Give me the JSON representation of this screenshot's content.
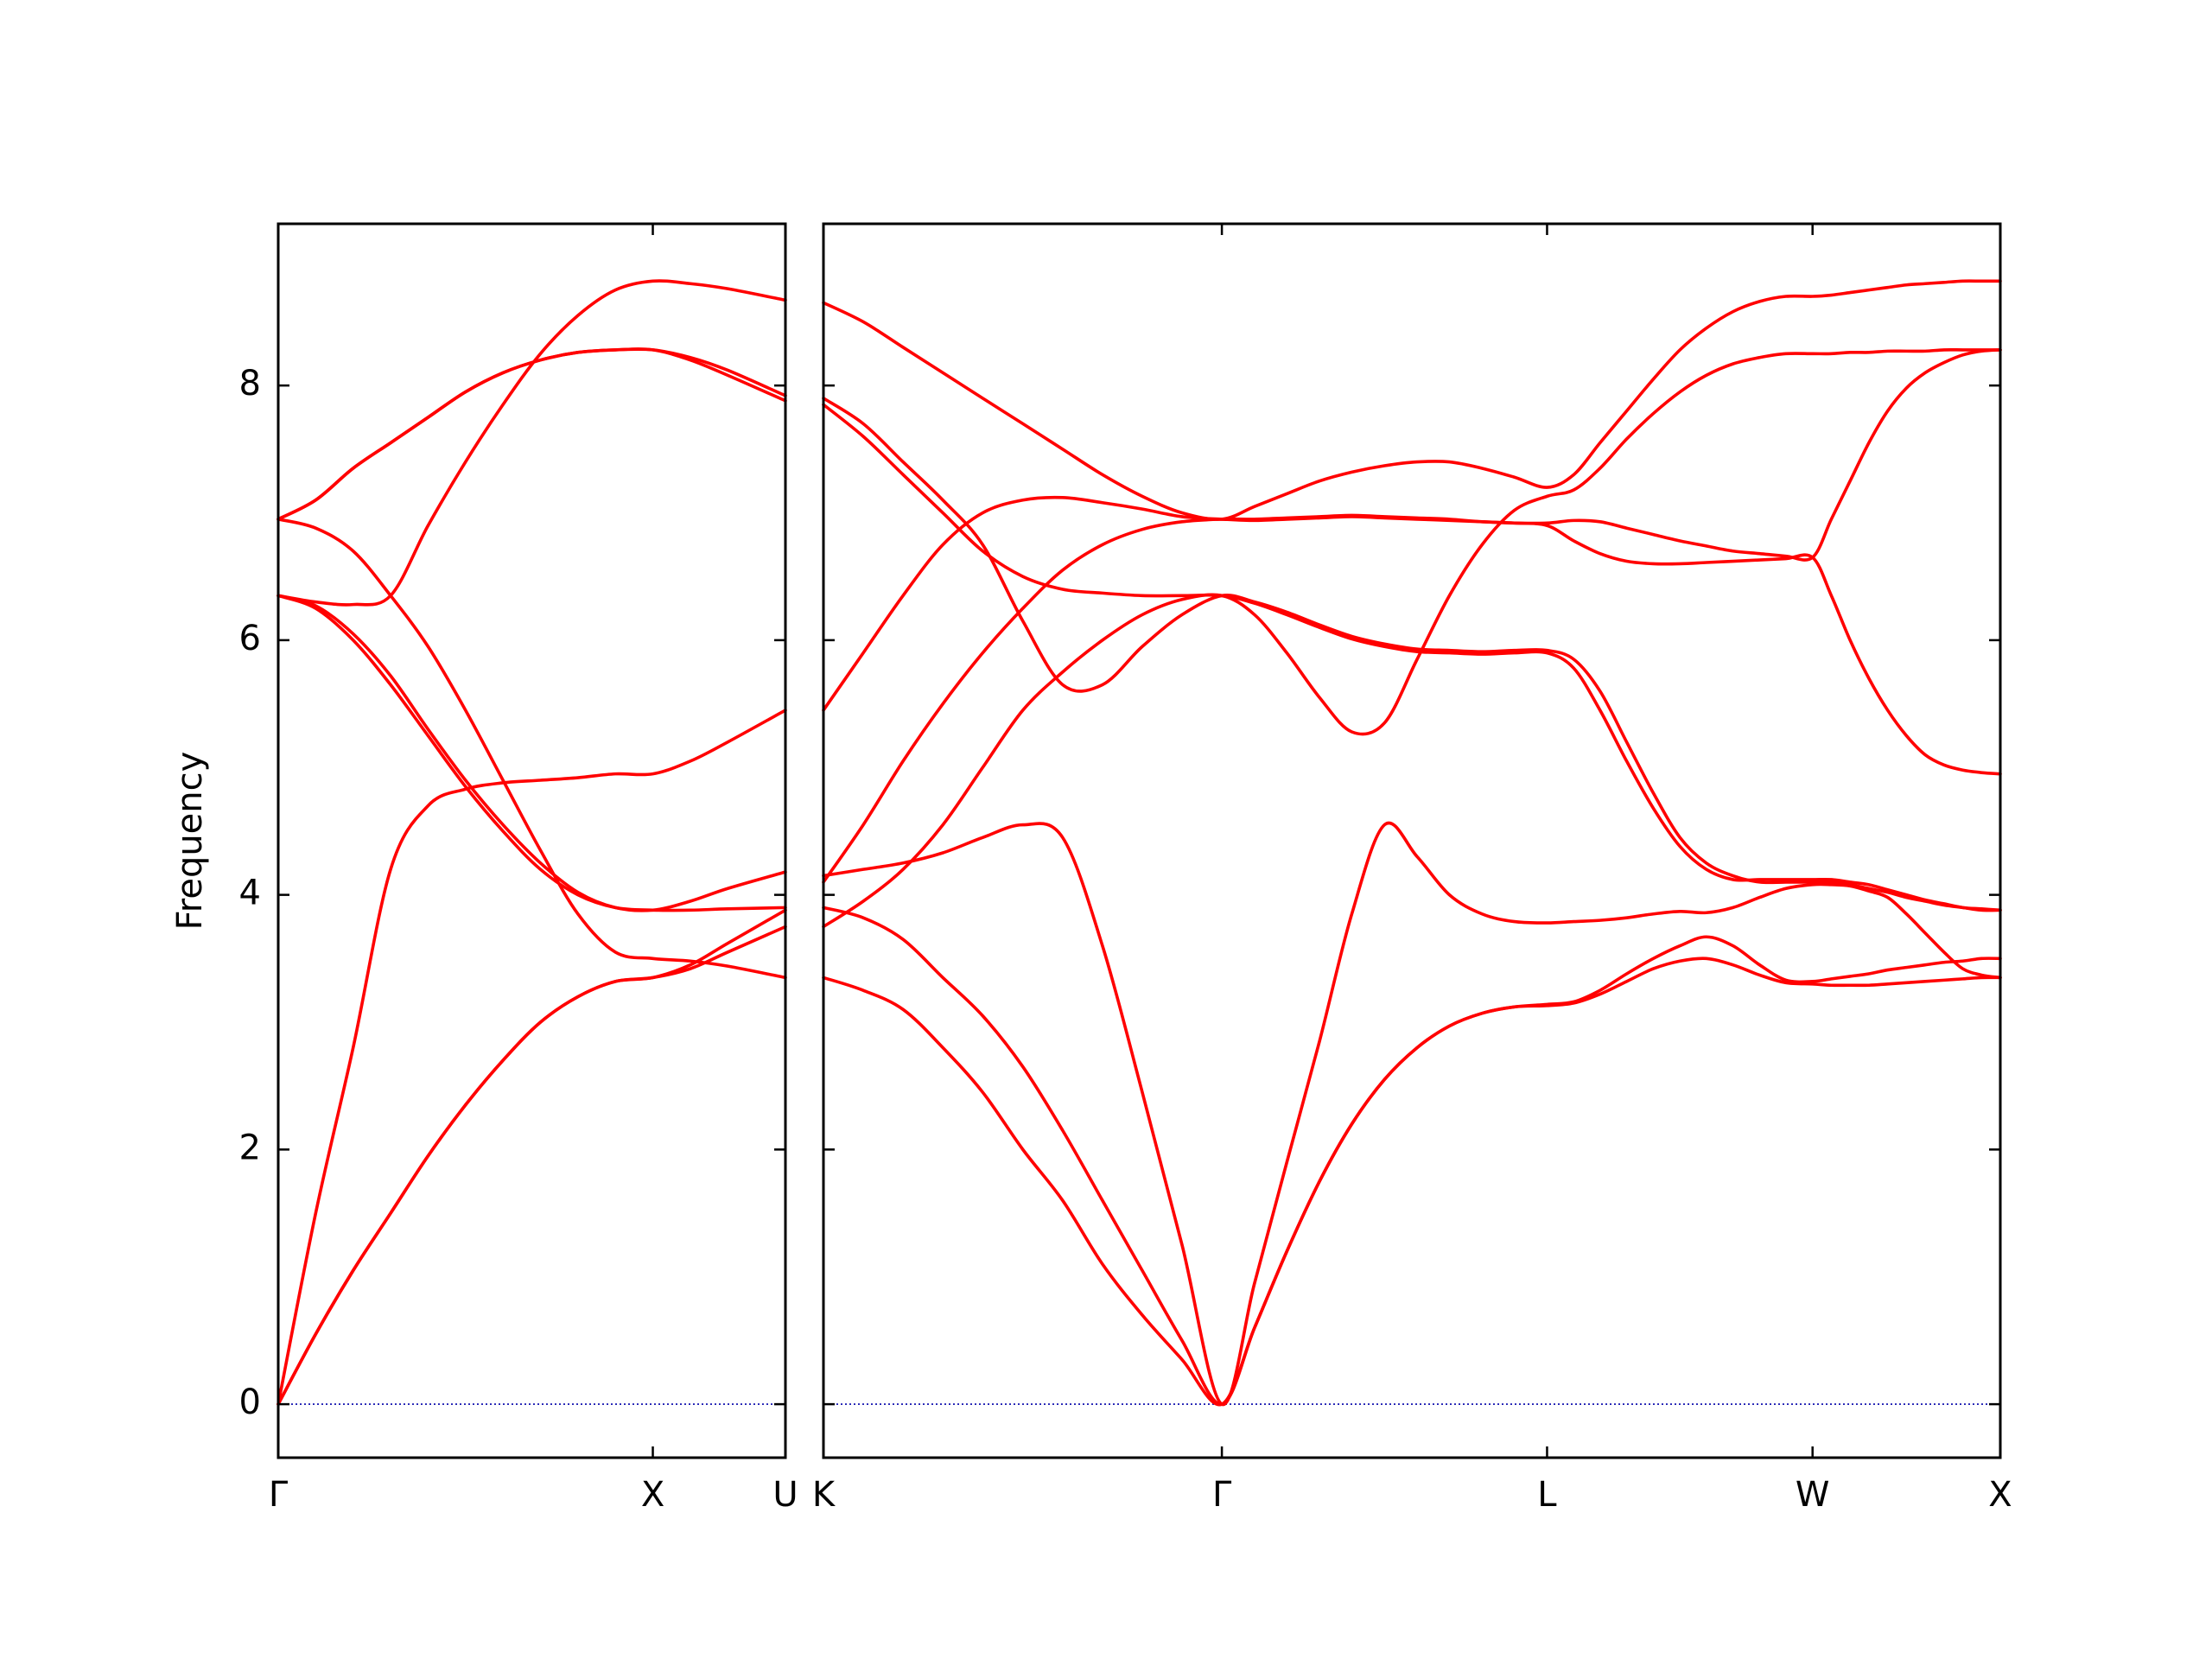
{
  "chart_data": [
    {
      "type": "line",
      "ylabel": "Frequency",
      "x": [
        0,
        0.1,
        0.2,
        0.3,
        0.4,
        0.5,
        0.6,
        0.7,
        0.8,
        0.9,
        1.0,
        1.1,
        1.2,
        1.354
      ],
      "xlim": [
        0,
        1.354
      ],
      "xticks": [
        {
          "value": 0,
          "label": "Γ"
        },
        {
          "value": 1,
          "label": "X"
        },
        {
          "value": 1.354,
          "label": "U"
        }
      ],
      "ylim": [
        -0.42,
        9.27
      ],
      "yticks": [
        0,
        2,
        4,
        6,
        8
      ],
      "color": "#ff0000",
      "hline": 0,
      "hline_color": "#0000aa",
      "series": [
        {
          "values": [
            0,
            0.55,
            1.05,
            1.5,
            1.95,
            2.35,
            2.7,
            3.0,
            3.2,
            3.32,
            3.35,
            3.42,
            3.55,
            3.75
          ]
        },
        {
          "values": [
            0,
            0.55,
            1.05,
            1.5,
            1.95,
            2.35,
            2.7,
            3.0,
            3.2,
            3.32,
            3.35,
            3.45,
            3.62,
            3.88
          ]
        },
        {
          "values": [
            6.95,
            6.88,
            6.7,
            6.35,
            5.95,
            5.45,
            4.9,
            4.35,
            3.85,
            3.55,
            3.5,
            3.48,
            3.44,
            3.35
          ]
        },
        {
          "values": [
            6.35,
            6.25,
            6.0,
            5.65,
            5.25,
            4.85,
            4.5,
            4.2,
            4.0,
            3.9,
            3.88,
            3.88,
            3.89,
            3.9
          ]
        },
        {
          "values": [
            6.35,
            6.27,
            6.05,
            5.72,
            5.3,
            4.9,
            4.55,
            4.25,
            4.02,
            3.9,
            3.88,
            3.95,
            4.05,
            4.18
          ]
        },
        {
          "values": [
            0,
            1.5,
            2.8,
            4.2,
            4.7,
            4.83,
            4.88,
            4.9,
            4.92,
            4.95,
            4.95,
            5.05,
            5.2,
            5.45
          ]
        },
        {
          "values": [
            6.35,
            6.3,
            6.28,
            6.35,
            6.9,
            7.4,
            7.85,
            8.25,
            8.55,
            8.75,
            8.82,
            8.8,
            8.76,
            8.67
          ]
        },
        {
          "values": [
            6.95,
            7.1,
            7.35,
            7.55,
            7.75,
            7.95,
            8.1,
            8.2,
            8.26,
            8.28,
            8.28,
            8.2,
            8.08,
            7.88
          ]
        },
        {
          "values": [
            6.95,
            7.1,
            7.35,
            7.55,
            7.75,
            7.95,
            8.1,
            8.2,
            8.26,
            8.28,
            8.28,
            8.22,
            8.12,
            7.92
          ]
        }
      ]
    },
    {
      "type": "line",
      "x": [
        1.354,
        1.46,
        1.566,
        1.672,
        1.778,
        1.885,
        1.991,
        2.097,
        2.203,
        2.309,
        2.415,
        2.502,
        2.588,
        2.675,
        2.761,
        2.848,
        2.935,
        3.021,
        3.108,
        3.194,
        3.281,
        3.352,
        3.422,
        3.493,
        3.564,
        3.635,
        3.705,
        3.776,
        3.847,
        3.917,
        3.988,
        4.038,
        4.088,
        4.138,
        4.188,
        4.238,
        4.288,
        4.338,
        4.388,
        4.438,
        4.488
      ],
      "xlim": [
        1.354,
        4.488
      ],
      "xticks": [
        {
          "value": 1.354,
          "label": "K"
        },
        {
          "value": 2.415,
          "label": "Γ"
        },
        {
          "value": 3.281,
          "label": "L"
        },
        {
          "value": 3.988,
          "label": "W"
        },
        {
          "value": 4.488,
          "label": "X"
        }
      ],
      "ylim": [
        -0.42,
        9.27
      ],
      "yticks": [
        0,
        2,
        4,
        6,
        8
      ],
      "show_ytick_labels": false,
      "color": "#ff0000",
      "hline": 0,
      "hline_color": "#0000aa",
      "series": [
        {
          "values": [
            3.35,
            3.25,
            3.1,
            2.8,
            2.45,
            2.0,
            1.6,
            1.1,
            0.7,
            0.35,
            0,
            0.6,
            1.2,
            1.75,
            2.2,
            2.55,
            2.8,
            2.97,
            3.07,
            3.12,
            3.13,
            3.15,
            3.22,
            3.32,
            3.42,
            3.48,
            3.5,
            3.45,
            3.37,
            3.31,
            3.3,
            3.29,
            3.29,
            3.29,
            3.3,
            3.31,
            3.32,
            3.33,
            3.34,
            3.35,
            3.35
          ]
        },
        {
          "values": [
            3.9,
            3.82,
            3.65,
            3.35,
            3.05,
            2.65,
            2.15,
            1.6,
            1.05,
            0.5,
            0,
            0.6,
            1.2,
            1.75,
            2.2,
            2.55,
            2.8,
            2.97,
            3.07,
            3.12,
            3.14,
            3.16,
            3.25,
            3.38,
            3.5,
            3.6,
            3.67,
            3.6,
            3.45,
            3.33,
            3.32,
            3.34,
            3.36,
            3.38,
            3.41,
            3.43,
            3.45,
            3.47,
            3.48,
            3.5,
            3.5
          ]
        },
        {
          "values": [
            4.15,
            4.2,
            4.25,
            4.33,
            4.45,
            4.55,
            4.45,
            3.6,
            2.45,
            1.25,
            0,
            0.95,
            1.9,
            2.85,
            3.85,
            4.55,
            4.3,
            4.0,
            3.85,
            3.79,
            3.78,
            3.79,
            3.8,
            3.82,
            3.85,
            3.87,
            3.86,
            3.9,
            3.98,
            4.05,
            4.08,
            4.08,
            4.07,
            4.03,
            3.98,
            3.85,
            3.7,
            3.55,
            3.42,
            3.37,
            3.35
          ]
        },
        {
          "values": [
            3.75,
            3.95,
            4.2,
            4.55,
            5.0,
            5.45,
            5.75,
            6.0,
            6.2,
            6.32,
            6.35,
            6.2,
            5.9,
            5.55,
            5.28,
            5.35,
            5.85,
            6.35,
            6.75,
            7.02,
            7.13,
            7.18,
            7.35,
            7.58,
            7.78,
            7.95,
            8.08,
            8.17,
            8.22,
            8.25,
            8.25,
            8.25,
            8.26,
            8.26,
            8.27,
            8.27,
            8.27,
            8.28,
            8.28,
            8.28,
            8.28
          ]
        },
        {
          "values": [
            7.9,
            7.7,
            7.4,
            7.1,
            6.75,
            6.15,
            5.65,
            5.65,
            5.95,
            6.2,
            6.35,
            6.3,
            6.22,
            6.12,
            6.03,
            5.97,
            5.93,
            5.92,
            5.91,
            5.92,
            5.92,
            5.85,
            5.6,
            5.2,
            4.8,
            4.45,
            4.25,
            4.15,
            4.1,
            4.1,
            4.1,
            4.1,
            4.08,
            4.05,
            4.02,
            3.98,
            3.95,
            3.92,
            3.9,
            3.88,
            3.88
          ]
        },
        {
          "values": [
            7.85,
            7.6,
            7.3,
            7.0,
            6.7,
            6.5,
            6.4,
            6.37,
            6.35,
            6.35,
            6.35,
            6.29,
            6.2,
            6.1,
            6.01,
            5.95,
            5.91,
            5.9,
            5.89,
            5.9,
            5.9,
            5.78,
            5.45,
            5.05,
            4.68,
            4.38,
            4.2,
            4.12,
            4.12,
            4.12,
            4.12,
            4.12,
            4.1,
            4.08,
            4.04,
            4.0,
            3.96,
            3.93,
            3.9,
            3.89,
            3.88
          ]
        },
        {
          "values": [
            4.1,
            4.55,
            5.05,
            5.5,
            5.9,
            6.25,
            6.55,
            6.75,
            6.87,
            6.93,
            6.95,
            6.95,
            6.96,
            6.97,
            6.98,
            6.97,
            6.96,
            6.95,
            6.93,
            6.92,
            6.9,
            6.78,
            6.68,
            6.62,
            6.6,
            6.6,
            6.61,
            6.62,
            6.63,
            6.64,
            6.65,
            6.35,
            6.0,
            5.7,
            5.45,
            5.25,
            5.1,
            5.02,
            4.98,
            4.96,
            4.95
          ]
        },
        {
          "values": [
            5.45,
            5.9,
            6.35,
            6.75,
            7.0,
            7.1,
            7.12,
            7.08,
            7.03,
            6.97,
            6.95,
            6.94,
            6.95,
            6.96,
            6.97,
            6.96,
            6.95,
            6.94,
            6.93,
            6.92,
            6.92,
            6.94,
            6.93,
            6.88,
            6.83,
            6.78,
            6.74,
            6.7,
            6.68,
            6.66,
            6.65,
            6.95,
            7.25,
            7.55,
            7.8,
            7.98,
            8.1,
            8.18,
            8.24,
            8.27,
            8.28
          ]
        },
        {
          "values": [
            8.65,
            8.5,
            8.3,
            8.1,
            7.9,
            7.7,
            7.5,
            7.3,
            7.13,
            7.0,
            6.95,
            7.05,
            7.15,
            7.25,
            7.32,
            7.37,
            7.4,
            7.4,
            7.35,
            7.28,
            7.2,
            7.3,
            7.55,
            7.8,
            8.05,
            8.28,
            8.45,
            8.58,
            8.66,
            8.7,
            8.7,
            8.71,
            8.73,
            8.75,
            8.77,
            8.79,
            8.8,
            8.81,
            8.82,
            8.82,
            8.82
          ]
        }
      ]
    }
  ]
}
